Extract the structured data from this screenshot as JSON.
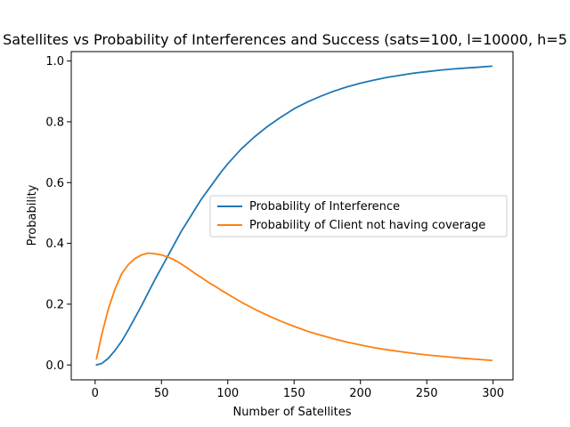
{
  "chart_data": {
    "type": "line",
    "title": "Satellites vs Probability of Interferences and Success (sats=100, l=10000, h=5",
    "xlabel": "Number of Satellites",
    "ylabel": "Probability",
    "xlim": [
      -18,
      315
    ],
    "ylim": [
      -0.049,
      1.031
    ],
    "xticks": [
      0,
      50,
      100,
      150,
      200,
      250,
      300
    ],
    "yticks": [
      0.0,
      0.2,
      0.4,
      0.6,
      0.8,
      1.0
    ],
    "xtick_labels": [
      "0",
      "50",
      "100",
      "150",
      "200",
      "250",
      "300"
    ],
    "ytick_labels": [
      "0.0",
      "0.2",
      "0.4",
      "0.6",
      "0.8",
      "1.0"
    ],
    "grid": false,
    "legend_position": "center-right",
    "colors": {
      "interference": "#1f77b4",
      "no_coverage": "#ff7f0e"
    },
    "series": [
      {
        "name": "Probability of Interference",
        "x": [
          1,
          5,
          10,
          15,
          20,
          25,
          30,
          35,
          40,
          45,
          50,
          55,
          60,
          65,
          70,
          75,
          80,
          85,
          90,
          95,
          100,
          110,
          120,
          130,
          140,
          150,
          160,
          170,
          180,
          190,
          200,
          210,
          220,
          230,
          240,
          250,
          260,
          270,
          280,
          290,
          299
        ],
        "y": [
          0.0,
          0.005,
          0.022,
          0.048,
          0.078,
          0.115,
          0.155,
          0.195,
          0.238,
          0.28,
          0.32,
          0.36,
          0.4,
          0.44,
          0.475,
          0.51,
          0.545,
          0.575,
          0.605,
          0.635,
          0.662,
          0.71,
          0.75,
          0.785,
          0.815,
          0.843,
          0.865,
          0.884,
          0.901,
          0.915,
          0.927,
          0.937,
          0.946,
          0.953,
          0.96,
          0.965,
          0.97,
          0.974,
          0.977,
          0.98,
          0.983
        ]
      },
      {
        "name": "Probability of Client not having coverage",
        "x": [
          1,
          5,
          10,
          15,
          20,
          25,
          30,
          35,
          40,
          45,
          50,
          55,
          60,
          65,
          70,
          75,
          80,
          85,
          90,
          95,
          100,
          110,
          120,
          130,
          140,
          150,
          160,
          170,
          180,
          190,
          200,
          210,
          220,
          230,
          240,
          250,
          260,
          270,
          280,
          290,
          299
        ],
        "y": [
          0.02,
          0.1,
          0.185,
          0.25,
          0.3,
          0.33,
          0.35,
          0.362,
          0.368,
          0.366,
          0.362,
          0.355,
          0.345,
          0.332,
          0.318,
          0.302,
          0.288,
          0.273,
          0.26,
          0.246,
          0.233,
          0.207,
          0.184,
          0.163,
          0.144,
          0.127,
          0.111,
          0.098,
          0.086,
          0.075,
          0.066,
          0.057,
          0.05,
          0.044,
          0.038,
          0.033,
          0.029,
          0.025,
          0.021,
          0.018,
          0.015
        ]
      }
    ]
  }
}
